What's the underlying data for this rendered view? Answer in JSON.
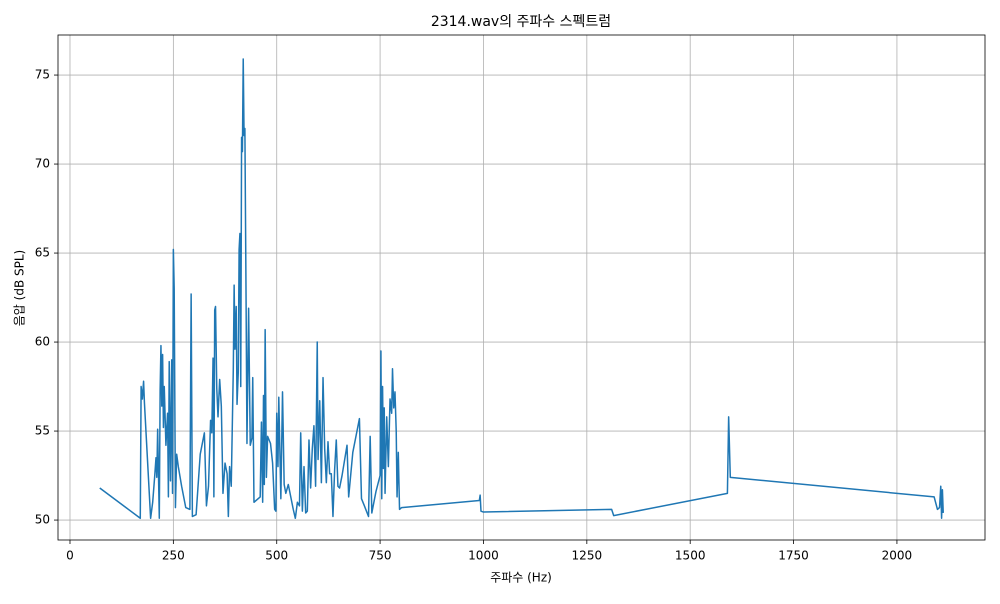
{
  "chart_data": {
    "type": "line",
    "title": "2314.wav의 주파수 스펙트럼",
    "x_label": "주파수 (Hz)",
    "y_label": "음압 (dB SPL)",
    "color": "#1f77b4",
    "grid": true,
    "xlim": [
      -29,
      2213
    ],
    "ylim": [
      48.88,
      77.25
    ],
    "xticks": [
      0,
      250,
      500,
      750,
      1000,
      1250,
      1500,
      1750,
      2000
    ],
    "yticks": [
      50,
      55,
      60,
      65,
      70,
      75
    ],
    "x": [
      72,
      170,
      172,
      175,
      178,
      180,
      195,
      200,
      205,
      208,
      210,
      212,
      214,
      216,
      218,
      220,
      222,
      224,
      226,
      228,
      232,
      236,
      238,
      240,
      243,
      246,
      248,
      250,
      252,
      255,
      258,
      262,
      270,
      280,
      290,
      293,
      296,
      305,
      315,
      325,
      330,
      335,
      340,
      343,
      346,
      348,
      350,
      352,
      355,
      358,
      362,
      366,
      370,
      375,
      380,
      383,
      386,
      390,
      395,
      397,
      399,
      402,
      404,
      407,
      409,
      411,
      413,
      415,
      417,
      419,
      421,
      423,
      426,
      428,
      432,
      436,
      440,
      442,
      445,
      460,
      463,
      466,
      468,
      470,
      472,
      475,
      478,
      485,
      490,
      495,
      498,
      500,
      503,
      505,
      510,
      514,
      518,
      522,
      528,
      540,
      545,
      550,
      555,
      558,
      562,
      566,
      570,
      574,
      578,
      582,
      586,
      590,
      594,
      598,
      600,
      604,
      608,
      612,
      616,
      620,
      624,
      628,
      632,
      636,
      640,
      644,
      648,
      652,
      658,
      670,
      674,
      684,
      700,
      705,
      712,
      722,
      726,
      730,
      740,
      750,
      752,
      754,
      756,
      758,
      760,
      762,
      766,
      770,
      774,
      778,
      780,
      783,
      786,
      789,
      791,
      794,
      797,
      802,
      990,
      992,
      994,
      1000,
      1310,
      1315,
      1590,
      1593,
      1597,
      2090,
      2098,
      2103,
      2106,
      2108,
      2110,
      2112
    ],
    "values": [
      51.8,
      50.1,
      57.5,
      56.8,
      57.8,
      56.6,
      50.1,
      51,
      52.5,
      53.5,
      52.4,
      55.1,
      52.6,
      50.1,
      57.3,
      59.8,
      56.4,
      59.3,
      55.2,
      57.5,
      54.2,
      56,
      51.3,
      58.9,
      52.2,
      59,
      51.5,
      65.2,
      63,
      50.7,
      53.7,
      53,
      51.9,
      50.7,
      50.6,
      62.7,
      50.2,
      50.3,
      53.7,
      54.9,
      50.8,
      51.9,
      55.6,
      54.9,
      59.1,
      51.3,
      61.8,
      62,
      57.4,
      55.8,
      57.9,
      56.4,
      51.5,
      53.2,
      52.6,
      50.2,
      53,
      51.9,
      58.5,
      63.2,
      59.6,
      62,
      56.5,
      58.3,
      65.2,
      66.1,
      57.5,
      71.5,
      70.7,
      75.9,
      71.6,
      72,
      61.9,
      54.3,
      61.9,
      54.2,
      54.6,
      58,
      51,
      51.3,
      55.5,
      51,
      57,
      52,
      60.7,
      52.4,
      54.7,
      54.3,
      53.2,
      50.6,
      50.5,
      56,
      53,
      56.9,
      51.2,
      57.2,
      52,
      51.5,
      52,
      50.6,
      50.1,
      51,
      50.8,
      54.9,
      50.5,
      53,
      50.4,
      50.5,
      54.5,
      51.8,
      54,
      55.3,
      51.9,
      60,
      53.4,
      56.7,
      52.1,
      58,
      54,
      52.1,
      54.4,
      52.6,
      52.6,
      50.2,
      52.8,
      54.5,
      51.9,
      51.8,
      52.5,
      54.2,
      51.3,
      53.8,
      55.7,
      51.2,
      50.8,
      50.2,
      54.7,
      50.4,
      51.6,
      52.5,
      59.5,
      51.2,
      57.5,
      52.9,
      56.3,
      51.5,
      55.8,
      53,
      56.8,
      56,
      58.5,
      56.3,
      57.2,
      55,
      51.3,
      53.8,
      50.6,
      50.7,
      51.1,
      51.4,
      50.5,
      50.45,
      50.6,
      50.25,
      51.5,
      55.8,
      52.4,
      51.3,
      50.6,
      50.7,
      51.9,
      50.1,
      51.7,
      50.4
    ]
  }
}
